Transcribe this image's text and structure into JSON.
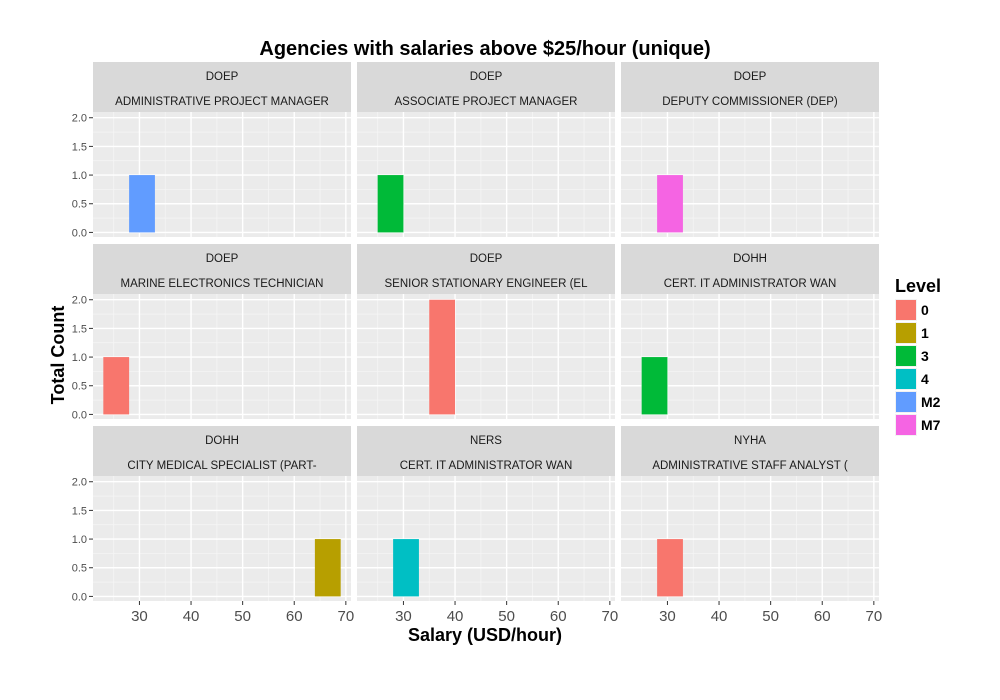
{
  "chart_data": {
    "type": "bar",
    "title": "Agencies with salaries above $25/hour (unique)",
    "xlabel": "Salary (USD/hour)",
    "ylabel": "Total Count",
    "xlim": [
      21,
      71
    ],
    "ylim": [
      -0.08,
      2.1
    ],
    "xticks": [
      30,
      40,
      50,
      60,
      70
    ],
    "yticks": [
      0.0,
      0.5,
      1.0,
      1.5,
      2.0
    ],
    "ytick_labels": [
      "0.0",
      "0.5",
      "1.0",
      "1.5",
      "2.0"
    ],
    "bin_width": 5,
    "grid": true,
    "legend": {
      "title": "Level",
      "placement": "right",
      "entries": [
        {
          "label": "0",
          "color": "#F8766D"
        },
        {
          "label": "1",
          "color": "#B79F00"
        },
        {
          "label": "3",
          "color": "#00BA38"
        },
        {
          "label": "4",
          "color": "#00BFC4"
        },
        {
          "label": "M2",
          "color": "#619CFF"
        },
        {
          "label": "M7",
          "color": "#F564E3"
        }
      ]
    },
    "panels": [
      {
        "agency": "DOEP",
        "title": "ADMINISTRATIVE PROJECT MANAGER",
        "bars": [
          {
            "x": 30.5,
            "count": 1,
            "level": "M2"
          }
        ]
      },
      {
        "agency": "DOEP",
        "title": "ASSOCIATE PROJECT MANAGER",
        "bars": [
          {
            "x": 27.5,
            "count": 1,
            "level": "3"
          }
        ]
      },
      {
        "agency": "DOEP",
        "title": "DEPUTY COMMISSIONER (DEP)",
        "bars": [
          {
            "x": 30.5,
            "count": 1,
            "level": "M7"
          }
        ]
      },
      {
        "agency": "DOEP",
        "title": "MARINE ELECTRONICS TECHNICIAN",
        "bars": [
          {
            "x": 25.5,
            "count": 1,
            "level": "0"
          }
        ]
      },
      {
        "agency": "DOEP",
        "title": "SENIOR STATIONARY ENGINEER (EL",
        "bars": [
          {
            "x": 37.5,
            "count": 2,
            "level": "0"
          }
        ]
      },
      {
        "agency": "DOHH",
        "title": "CERT. IT ADMINISTRATOR WAN",
        "bars": [
          {
            "x": 27.5,
            "count": 1,
            "level": "3"
          }
        ]
      },
      {
        "agency": "DOHH",
        "title": "CITY MEDICAL SPECIALIST (PART-",
        "bars": [
          {
            "x": 66.5,
            "count": 1,
            "level": "1"
          }
        ]
      },
      {
        "agency": "NERS",
        "title": "CERT. IT ADMINISTRATOR WAN",
        "bars": [
          {
            "x": 30.5,
            "count": 1,
            "level": "4"
          }
        ]
      },
      {
        "agency": "NYHA",
        "title": "ADMINISTRATIVE STAFF ANALYST (",
        "bars": [
          {
            "x": 30.5,
            "count": 1,
            "level": "0"
          }
        ]
      }
    ]
  }
}
